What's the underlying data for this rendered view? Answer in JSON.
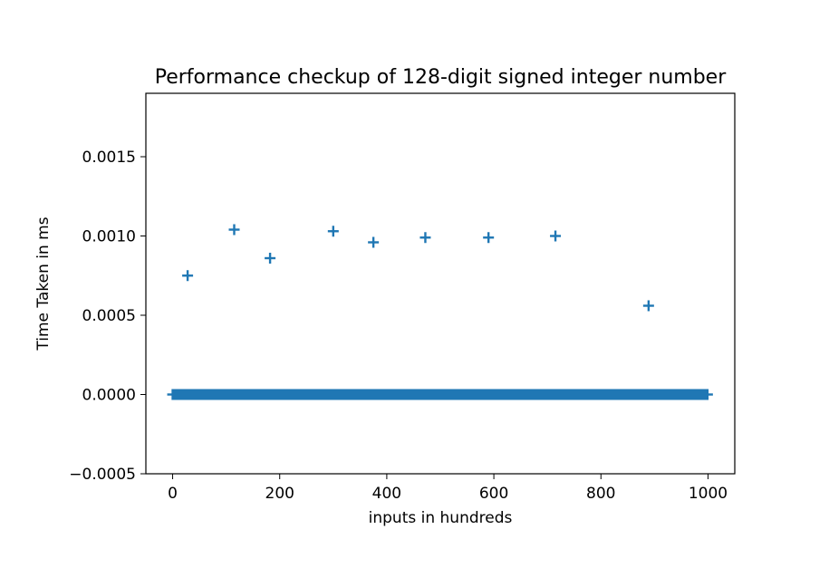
{
  "chart_data": {
    "type": "scatter",
    "title": "Performance checkup of 128-digit signed integer number",
    "xlabel": "inputs in hundreds",
    "ylabel": "Time Taken in ms",
    "xlim": [
      -50,
      1050
    ],
    "ylim": [
      -0.0005,
      0.0019
    ],
    "x_ticks": [
      0,
      200,
      400,
      600,
      800,
      1000
    ],
    "x_tick_labels": [
      "0",
      "200",
      "400",
      "600",
      "800",
      "1000"
    ],
    "y_ticks": [
      -0.0005,
      0,
      0.0005,
      0.001,
      0.0015
    ],
    "y_tick_labels": [
      "−0.0005",
      "0.0000",
      "0.0005",
      "0.0010",
      "0.0015"
    ],
    "grid": false,
    "marker": "plus",
    "color": "#1f77b4",
    "baseline": {
      "x_start": 0,
      "x_end": 999,
      "y": 0
    },
    "outliers": [
      {
        "x": 28,
        "y": 0.00075
      },
      {
        "x": 115,
        "y": 0.00104
      },
      {
        "x": 182,
        "y": 0.00086
      },
      {
        "x": 300,
        "y": 0.00103
      },
      {
        "x": 375,
        "y": 0.00096
      },
      {
        "x": 472,
        "y": 0.00099
      },
      {
        "x": 590,
        "y": 0.00099
      },
      {
        "x": 715,
        "y": 0.001
      },
      {
        "x": 889,
        "y": 0.00056
      }
    ]
  }
}
